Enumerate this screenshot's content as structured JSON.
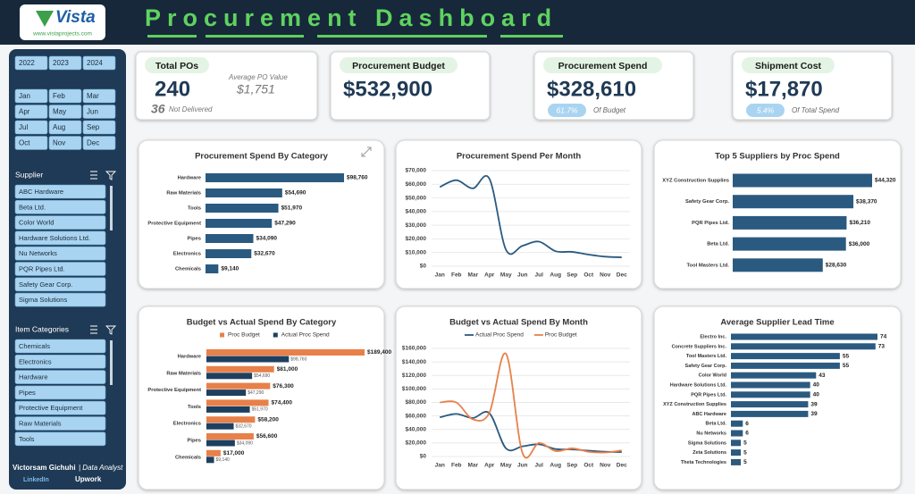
{
  "header": {
    "logo": "Vista",
    "logo_url": "www.vistaprojects.com",
    "title": "Procurement Dashboard"
  },
  "sidebar": {
    "years": [
      "2022",
      "2023",
      "2024"
    ],
    "months": [
      "Jan",
      "Feb",
      "Mar",
      "Apr",
      "May",
      "Jun",
      "Jul",
      "Aug",
      "Sep",
      "Oct",
      "Nov",
      "Dec"
    ],
    "supplier_label": "Supplier",
    "suppliers": [
      "ABC Hardware",
      "Beta Ltd.",
      "Color World",
      "Hardware Solutions Ltd.",
      "Nu Networks",
      "PQR Pipes Ltd.",
      "Safety Gear Corp.",
      "Sigma Solutions"
    ],
    "category_label": "Item Categories",
    "categories": [
      "Chemicals",
      "Electronics",
      "Hardware",
      "Pipes",
      "Protective Equipment",
      "Raw Materials",
      "Tools"
    ],
    "author": "Victorsam Gichuhi",
    "role": "| Data Analyst",
    "links": [
      "LinkedIn",
      "Upwork"
    ]
  },
  "kpis": [
    {
      "title": "Total POs",
      "value": "240",
      "sub_label": "Average PO Value",
      "sub_value": "$1,751",
      "note_value": "36",
      "note": "Not Delivered"
    },
    {
      "title": "Procurement Budget",
      "value": "$532,900"
    },
    {
      "title": "Procurement Spend",
      "value": "$328,610",
      "badge": "61.7%",
      "badge_note": "Of Budget"
    },
    {
      "title": "Shipment Cost",
      "value": "$17,870",
      "badge": "5.4%",
      "badge_note": "Of Total Spend"
    }
  ],
  "chart_data": [
    {
      "type": "bar",
      "title": "Procurement Spend By Category",
      "color": "#2b5a80",
      "categories": [
        "Hardware",
        "Raw Materials",
        "Tools",
        "Protective Equipment",
        "Pipes",
        "Electronics",
        "Chemicals"
      ],
      "values": [
        98760,
        54690,
        51970,
        47290,
        34090,
        32670,
        9140
      ],
      "value_labels": [
        "$98,760",
        "$54,690",
        "$51,970",
        "$47,290",
        "$34,090",
        "$32,670",
        "$9,140"
      ]
    },
    {
      "type": "line",
      "title": "Procurement Spend Per Month",
      "color": "#2b5a80",
      "categories": [
        "Jan",
        "Feb",
        "Mar",
        "Apr",
        "May",
        "Jun",
        "Jul",
        "Aug",
        "Sep",
        "Oct",
        "Nov",
        "Dec"
      ],
      "values": [
        58000,
        63000,
        57000,
        64000,
        12000,
        15000,
        18000,
        11000,
        10500,
        8500,
        7000,
        6500
      ],
      "ylim": [
        0,
        70000
      ],
      "yticks": [
        {
          "value": 0,
          "label": "$0"
        },
        {
          "value": 10000,
          "label": "$10,000"
        },
        {
          "value": 20000,
          "label": "$20,000"
        },
        {
          "value": 30000,
          "label": "$30,000"
        },
        {
          "value": 40000,
          "label": "$40,000"
        },
        {
          "value": 50000,
          "label": "$50,000"
        },
        {
          "value": 60000,
          "label": "$60,000"
        },
        {
          "value": 70000,
          "label": "$70,000"
        }
      ],
      "grid": true
    },
    {
      "type": "bar",
      "title": "Top 5 Suppliers by Proc Spend",
      "color": "#2b5a80",
      "categories": [
        "XYZ Construction Supplies",
        "Safety Gear Corp.",
        "PQR Pipes Ltd.",
        "Beta Ltd.",
        "Tool Masters Ltd."
      ],
      "values": [
        44320,
        38370,
        36210,
        36000,
        28630
      ],
      "value_labels": [
        "$44,320",
        "$38,370",
        "$36,210",
        "$36,000",
        "$28,630"
      ]
    },
    {
      "type": "bar",
      "title": "Budget vs Actual Spend By Category",
      "categories": [
        "Hardware",
        "Raw Materials",
        "Protective Equipment",
        "Tools",
        "Electronics",
        "Pipes",
        "Chemicals"
      ],
      "series": [
        {
          "name": "Proc Budget",
          "color": "#e8804a",
          "values": [
            189400,
            81000,
            76300,
            74400,
            58200,
            56600,
            17000
          ],
          "value_labels": [
            "$189,400",
            "$81,000",
            "$76,300",
            "$74,400",
            "$58,200",
            "$56,600",
            "$17,000"
          ]
        },
        {
          "name": "Actual Proc Spend",
          "color": "#1f3f5e",
          "values": [
            98760,
            54690,
            47290,
            51970,
            32670,
            34090,
            9140
          ],
          "value_labels": [
            "$98,760",
            "$54,690",
            "$47,290",
            "$51,970",
            "$32,670",
            "$34,090",
            "$9,140"
          ]
        }
      ]
    },
    {
      "type": "line",
      "title": "Budget vs Actual Spend By Month",
      "categories": [
        "Jan",
        "Feb",
        "Mar",
        "Apr",
        "May",
        "Jun",
        "Jul",
        "Aug",
        "Sep",
        "Oct",
        "Nov",
        "Dec"
      ],
      "series": [
        {
          "name": "Actual Proc Spend",
          "color": "#2b5a80",
          "values": [
            58000,
            63000,
            57000,
            64000,
            12000,
            15000,
            18000,
            11000,
            10500,
            8500,
            7000,
            6500
          ]
        },
        {
          "name": "Proc Budget",
          "color": "#e8804a",
          "values": [
            80000,
            80000,
            55000,
            65000,
            152000,
            5000,
            20000,
            8000,
            12000,
            7000,
            6000,
            9000
          ]
        }
      ],
      "ylim": [
        0,
        160000
      ],
      "yticks": [
        {
          "value": 0,
          "label": "$0"
        },
        {
          "value": 20000,
          "label": "$20,000"
        },
        {
          "value": 40000,
          "label": "$40,000"
        },
        {
          "value": 60000,
          "label": "$60,000"
        },
        {
          "value": 80000,
          "label": "$80,000"
        },
        {
          "value": 100000,
          "label": "$100,000"
        },
        {
          "value": 120000,
          "label": "$120,000"
        },
        {
          "value": 140000,
          "label": "$140,000"
        },
        {
          "value": 160000,
          "label": "$160,000"
        }
      ],
      "grid": true
    },
    {
      "type": "bar",
      "title": "Average Supplier Lead Time",
      "color": "#2b5a80",
      "categories": [
        "Electro Inc.",
        "Concrete Suppliers Inc.",
        "Tool Masters Ltd.",
        "Safety Gear Corp.",
        "Color World",
        "Hardware Solutions Ltd.",
        "PQR Pipes Ltd.",
        "XYZ Construction Supplies",
        "ABC Hardware",
        "Beta Ltd.",
        "Nu Networks",
        "Sigma Solutions",
        "Zeta Solutions",
        "Theta Technologies"
      ],
      "values": [
        74,
        73,
        55,
        55,
        43,
        40,
        40,
        39,
        39,
        6,
        6,
        5,
        5,
        5
      ]
    }
  ]
}
